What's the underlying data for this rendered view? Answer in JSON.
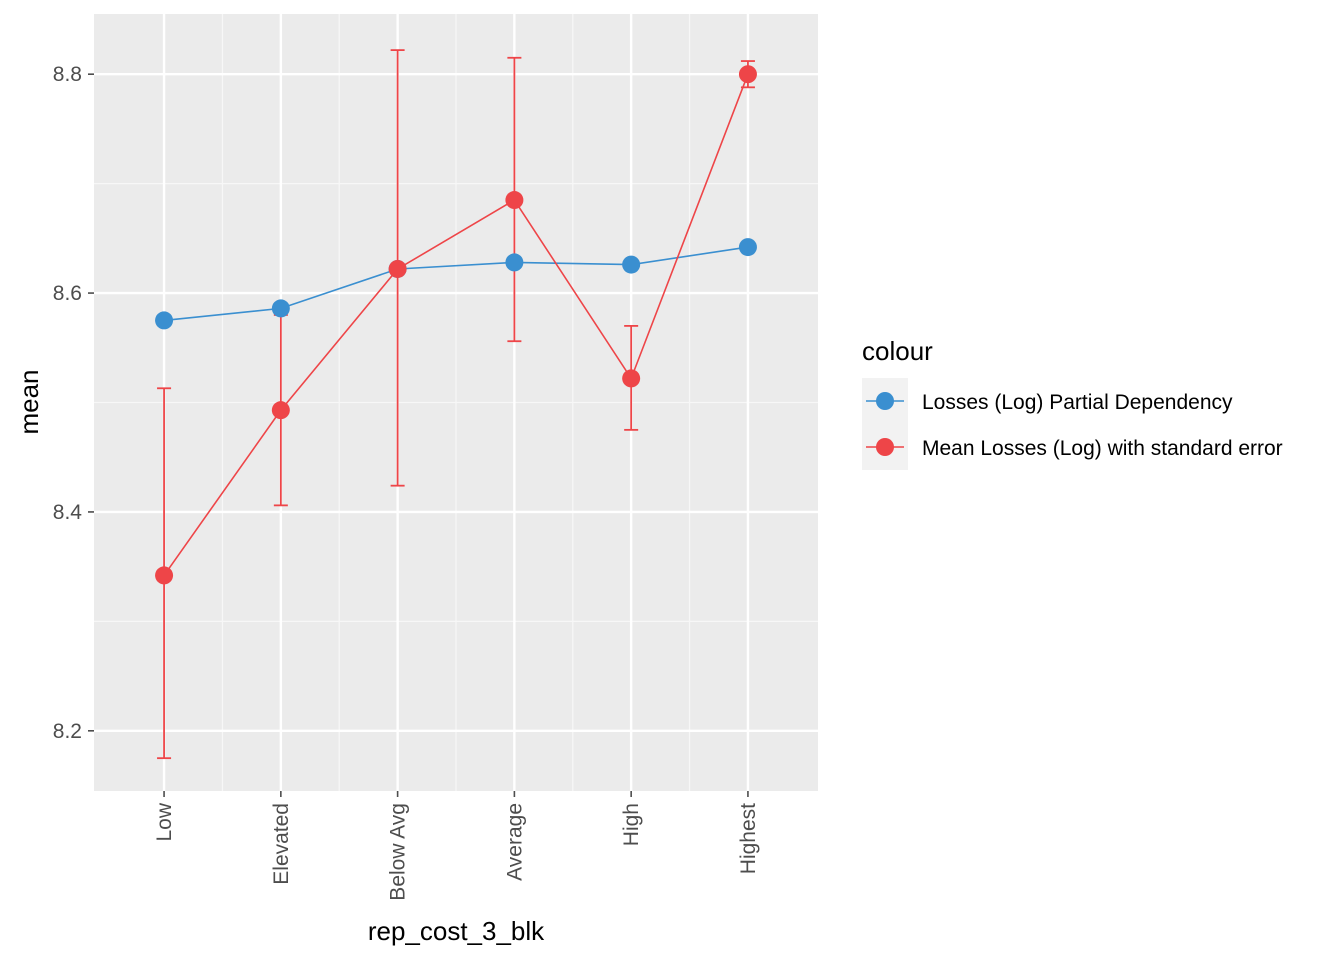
{
  "chart_data": {
    "type": "line",
    "xlabel": "rep_cost_3_blk",
    "ylabel": "mean",
    "categories": [
      "Low",
      "Elevated",
      "Below Avg",
      "Average",
      "High",
      "Highest"
    ],
    "ylim": [
      8.145,
      8.855
    ],
    "yticks": [
      8.2,
      8.4,
      8.6,
      8.8
    ],
    "ytick_labels": [
      "8.2",
      "8.4",
      "8.6",
      "8.8"
    ],
    "grid": true,
    "legend": {
      "title": "colour",
      "placement": "right"
    },
    "series": [
      {
        "name": "Losses (Log) Partial Dependency",
        "color": "#3a8fd0",
        "values": [
          8.575,
          8.586,
          8.622,
          8.628,
          8.626,
          8.642
        ]
      },
      {
        "name": "Mean Losses (Log) with standard error",
        "color": "#ee4548",
        "values": [
          8.342,
          8.493,
          8.622,
          8.685,
          8.522,
          8.8
        ],
        "error_low": [
          8.175,
          8.406,
          8.424,
          8.556,
          8.475,
          8.788
        ],
        "error_high": [
          8.513,
          8.58,
          8.822,
          8.815,
          8.57,
          8.812
        ]
      }
    ]
  }
}
